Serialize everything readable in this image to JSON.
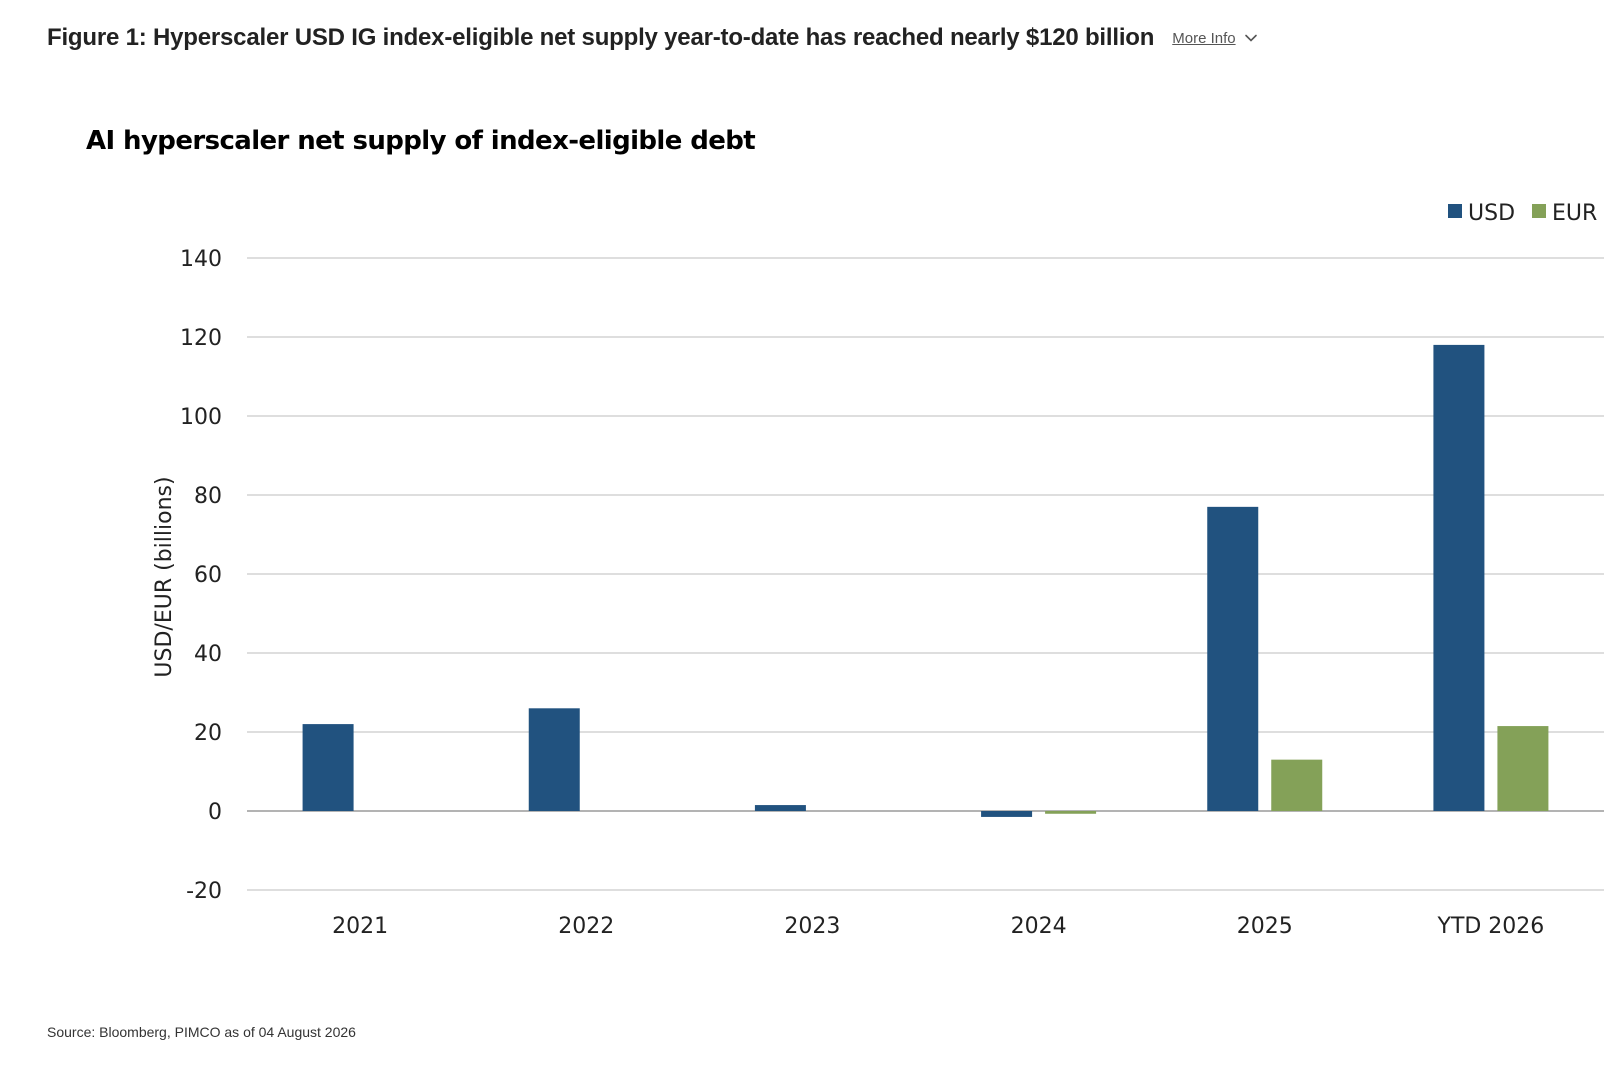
{
  "header": {
    "figure_title": "Figure 1: Hyperscaler USD IG index-eligible net supply year-to-date has reached nearly $120 billion",
    "more_info_label": "More Info"
  },
  "footer": {
    "source": "Source: Bloomberg, PIMCO as of 04 August 2026"
  },
  "colors": {
    "usd": "#21527f",
    "eur": "#84a158",
    "grid": "#bdbdbd",
    "zero_line": "#9a9a9a"
  },
  "chart_data": {
    "type": "bar",
    "title": "AI hyperscaler net supply of index-eligible debt",
    "xlabel": "",
    "ylabel": "USD/EUR (billions)",
    "categories": [
      "2021",
      "2022",
      "2023",
      "2024",
      "2025",
      "YTD 2026"
    ],
    "series": [
      {
        "name": "USD",
        "color": "#21527f",
        "values": [
          22,
          26,
          1.5,
          -1.5,
          77,
          118
        ]
      },
      {
        "name": "EUR",
        "color": "#84a158",
        "values": [
          0,
          0,
          0,
          -0.7,
          13,
          21.5
        ]
      }
    ],
    "ylim": [
      -20,
      140
    ],
    "yticks": [
      -20,
      0,
      20,
      40,
      60,
      80,
      100,
      120,
      140
    ],
    "grid": true,
    "legend_position": "top-right"
  }
}
